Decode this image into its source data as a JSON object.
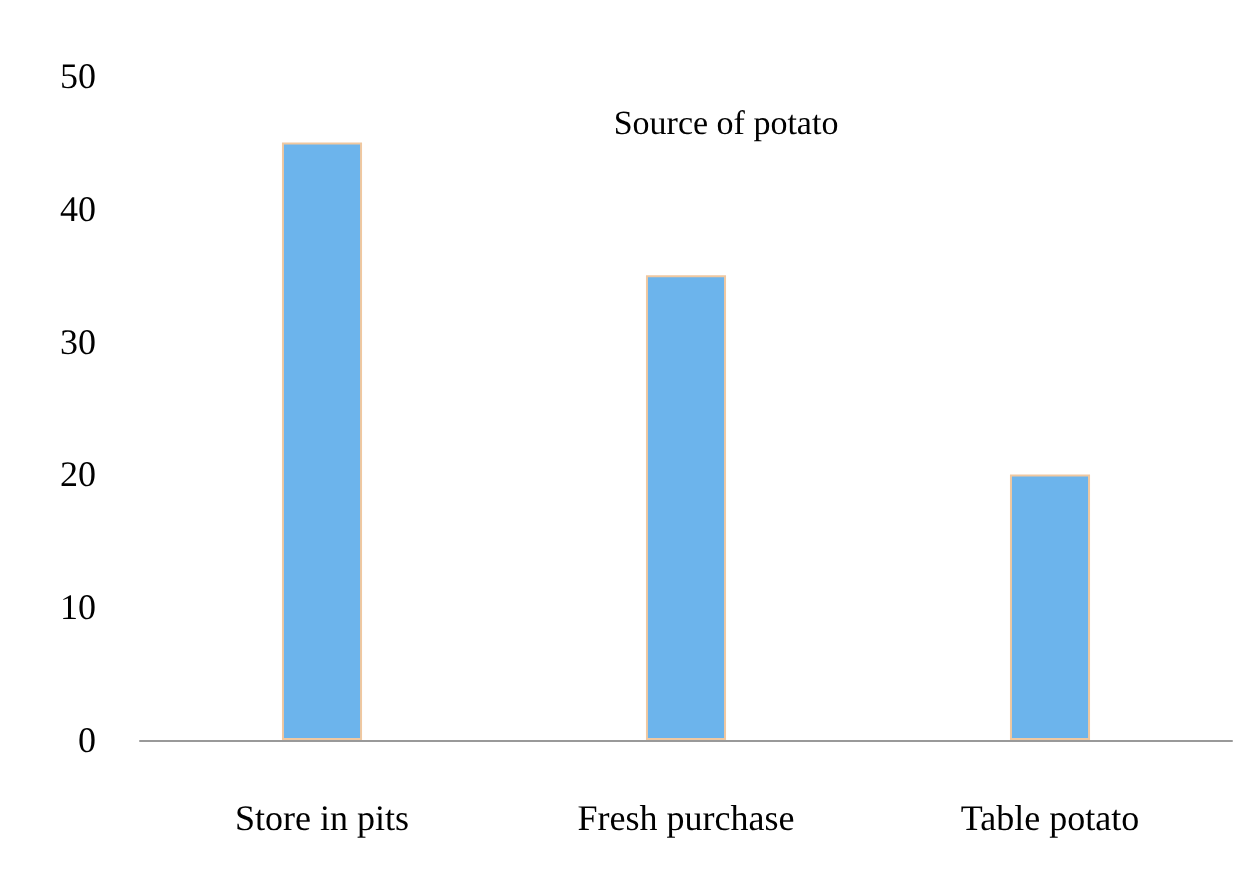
{
  "chart_data": {
    "type": "bar",
    "title": "Source of potato",
    "categories": [
      "Store in pits",
      "Fresh purchase",
      "Table potato"
    ],
    "values": [
      45,
      35,
      20
    ],
    "color": "#6cb4ec",
    "ylim": [
      0,
      50
    ],
    "yticks": [
      0,
      10,
      20,
      30,
      40,
      50
    ],
    "grid": false
  }
}
